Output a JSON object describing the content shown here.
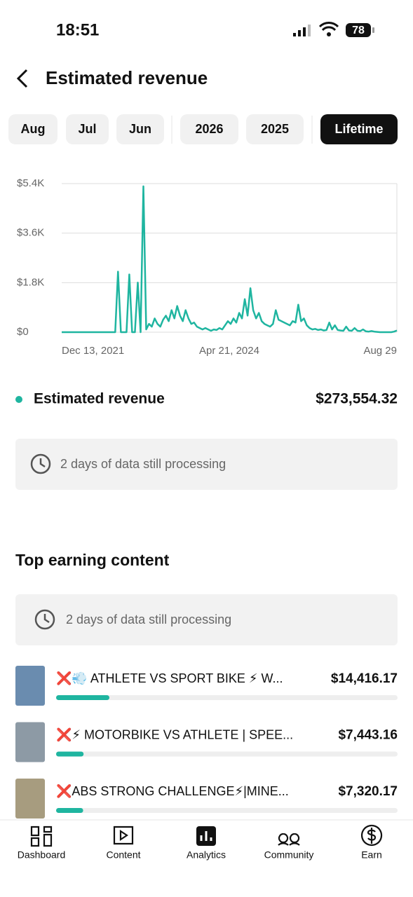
{
  "status_bar": {
    "time": "18:51",
    "battery": "78"
  },
  "header": {
    "title": "Estimated revenue"
  },
  "tabs": [
    "Aug",
    "Jul",
    "Jun",
    "2026",
    "2025",
    "Lifetime"
  ],
  "selected_tab": 5,
  "chart": {
    "type": "line",
    "color": "#1fb5a0",
    "values": [
      0,
      0,
      0,
      0,
      0,
      0,
      0,
      0,
      0,
      0,
      0,
      0,
      0,
      0,
      0,
      0,
      0,
      0,
      0,
      0,
      2200,
      0,
      0,
      0,
      2100,
      0,
      0,
      1800,
      0,
      5300,
      100,
      300,
      200,
      500,
      300,
      200,
      450,
      600,
      400,
      800,
      500,
      950,
      600,
      400,
      800,
      500,
      300,
      350,
      200,
      150,
      100,
      150,
      100,
      50,
      100,
      80,
      150,
      100,
      250,
      400,
      300,
      500,
      350,
      700,
      500,
      1200,
      600,
      1600,
      800,
      500,
      700,
      400,
      300,
      250,
      200,
      300,
      800,
      450,
      400,
      350,
      300,
      250,
      400,
      350,
      1000,
      400,
      500,
      250,
      150,
      100,
      120,
      80,
      100,
      60,
      80,
      350,
      100,
      250,
      80,
      60,
      50,
      200,
      60,
      50,
      150,
      50,
      40,
      100,
      30,
      20,
      40,
      20,
      10,
      0,
      0,
      0,
      0,
      0,
      20,
      60
    ],
    "ylim": [
      0,
      5400
    ],
    "yticks": [
      {
        "value": 0,
        "label": "$0"
      },
      {
        "value": 1800,
        "label": "$1.8K"
      },
      {
        "value": 3600,
        "label": "$3.6K"
      },
      {
        "value": 5400,
        "label": "$5.4K"
      }
    ],
    "x_labels": [
      "Dec 13, 2021",
      "Apr 21, 2024",
      "Aug 29"
    ],
    "grid": true
  },
  "summary": {
    "label": "Estimated revenue",
    "value": "$273,554.32"
  },
  "processing_note": "2 days of data still processing",
  "top_content": {
    "title": "Top earning content",
    "processing_note": "2 days of data still processing",
    "items": [
      {
        "title": "❌💨 ATHLETE VS SPORT BIKE ⚡ W...",
        "value": 14416.17,
        "value_label": "$14,416.17"
      },
      {
        "title": "❌⚡ MOTORBIKE VS ATHLETE | SPEE...",
        "value": 7443.16,
        "value_label": "$7,443.16"
      },
      {
        "title": "❌ABS STRONG CHALLENGE⚡|MINE...",
        "value": 7320.17,
        "value_label": "$7,320.17"
      }
    ]
  },
  "nav": [
    "Dashboard",
    "Content",
    "Analytics",
    "Community",
    "Earn"
  ]
}
